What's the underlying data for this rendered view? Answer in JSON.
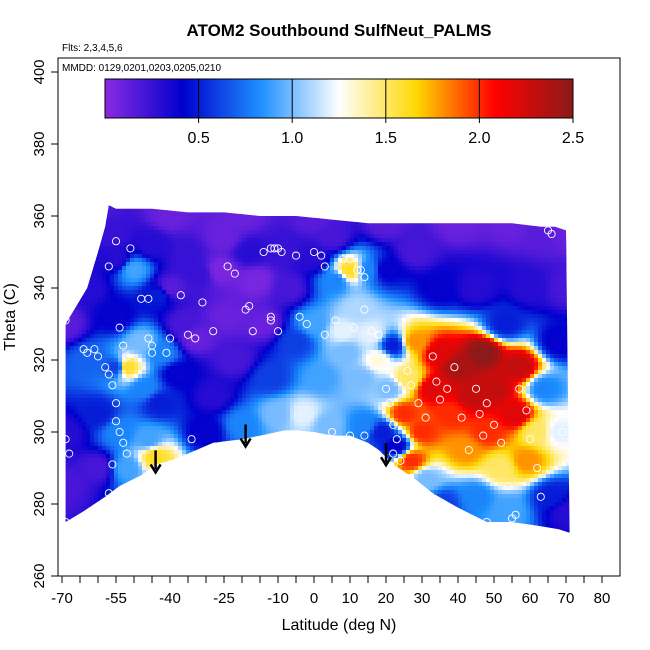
{
  "chart_data": {
    "type": "heatmap",
    "title": "ATOM2 Southbound SulfNeut_PALMS",
    "flights_label": "Flts: 2,3,4,5,6",
    "dates_label": "MMDD: 0129,0201,0203,0205,0210",
    "xlabel": "Latitude (deg N)",
    "ylabel": "Theta (C)",
    "xlim": [
      -70,
      80
    ],
    "ylim": [
      260,
      400
    ],
    "x_ticks": [
      -70,
      -55,
      -40,
      -25,
      -10,
      0,
      10,
      20,
      30,
      40,
      50,
      60,
      70,
      80
    ],
    "x_tick_labels": [
      "-70",
      "-55",
      "-40",
      "-25",
      "-10",
      "0",
      "10",
      "20",
      "30",
      "40",
      "50",
      "60",
      "70",
      "80"
    ],
    "x_minor_ticks": [
      -65,
      -60,
      -50,
      -45,
      -35,
      -30,
      -20,
      -15,
      -5,
      5,
      15,
      25,
      35,
      45,
      55,
      65,
      75
    ],
    "y_ticks": [
      260,
      280,
      300,
      320,
      340,
      360,
      380,
      400
    ],
    "y_tick_labels": [
      "260",
      "280",
      "300",
      "320",
      "340",
      "360",
      "380",
      "400"
    ],
    "colorbar": {
      "range": [
        0,
        2.5
      ],
      "ticks": [
        0.5,
        1.0,
        1.5,
        2.0,
        2.5
      ],
      "tick_labels": [
        "0.5",
        "1.0",
        "1.5",
        "2.0",
        "2.5"
      ],
      "colors": [
        "#8a2be2",
        "#0000cd",
        "#1e90ff",
        "#ffffff",
        "#ffd700",
        "#ff0000",
        "#8b1a1a"
      ]
    },
    "envelope": {
      "top": [
        [
          -69,
          330
        ],
        [
          -66,
          335
        ],
        [
          -63,
          340
        ],
        [
          -60,
          350
        ],
        [
          -58,
          357
        ],
        [
          -57,
          363
        ],
        [
          -55,
          362
        ],
        [
          -45,
          362
        ],
        [
          -35,
          361
        ],
        [
          -25,
          361
        ],
        [
          -15,
          360
        ],
        [
          -5,
          360
        ],
        [
          5,
          359
        ],
        [
          15,
          358
        ],
        [
          25,
          358
        ],
        [
          35,
          358
        ],
        [
          45,
          358
        ],
        [
          55,
          358
        ],
        [
          63,
          357
        ],
        [
          67,
          357
        ],
        [
          70,
          356
        ]
      ],
      "bottom": [
        [
          -69,
          275
        ],
        [
          -64,
          278
        ],
        [
          -58,
          282
        ],
        [
          -54,
          285
        ],
        [
          -48,
          288
        ],
        [
          -44,
          291
        ],
        [
          -40,
          292
        ],
        [
          -35,
          294
        ],
        [
          -28,
          297
        ],
        [
          -20,
          298
        ],
        [
          -15,
          299
        ],
        [
          -8,
          300.5
        ],
        [
          -5,
          300.5
        ],
        [
          0,
          300
        ],
        [
          5,
          299
        ],
        [
          10,
          299
        ],
        [
          15,
          297
        ],
        [
          18,
          295
        ],
        [
          22,
          291
        ],
        [
          28,
          287
        ],
        [
          33,
          283
        ],
        [
          40,
          279
        ],
        [
          48,
          275
        ],
        [
          55,
          275
        ],
        [
          62,
          274
        ],
        [
          68,
          273
        ],
        [
          71,
          272
        ]
      ]
    },
    "nodes": [
      [
        -69,
        330,
        0.15
      ],
      [
        -69,
        300,
        0.3
      ],
      [
        -69,
        285,
        0.2
      ],
      [
        -63,
        340,
        0.3
      ],
      [
        -62,
        320,
        0.7
      ],
      [
        -60,
        305,
        0.5
      ],
      [
        -60,
        290,
        0.2
      ],
      [
        -56,
        355,
        0.25
      ],
      [
        -55,
        348,
        0.3
      ],
      [
        -55,
        332,
        0.4
      ],
      [
        -55,
        318,
        0.6
      ],
      [
        -54,
        300,
        0.8
      ],
      [
        -52,
        318,
        1.6
      ],
      [
        -52,
        290,
        0.9
      ],
      [
        -50,
        345,
        0.9
      ],
      [
        -48,
        325,
        1.0
      ],
      [
        -47,
        312,
        0.8
      ],
      [
        -46,
        298,
        0.9
      ],
      [
        -44,
        293,
        1.6
      ],
      [
        -43,
        308,
        0.5
      ],
      [
        -43,
        338,
        0.5
      ],
      [
        -42,
        322,
        0.8
      ],
      [
        -40,
        340,
        0.15
      ],
      [
        -38,
        316,
        0.4
      ],
      [
        -36,
        330,
        0.2
      ],
      [
        -35,
        349,
        0.25
      ],
      [
        -33,
        326,
        0.1
      ],
      [
        -32,
        344,
        0.25
      ],
      [
        -30,
        300,
        0.4
      ],
      [
        -28,
        310,
        0.3
      ],
      [
        -26,
        345,
        0.05
      ],
      [
        -24,
        332,
        0.1
      ],
      [
        -22,
        320,
        0.2
      ],
      [
        -20,
        302,
        0.8
      ],
      [
        -18,
        350,
        0.3
      ],
      [
        -16,
        342,
        0.05
      ],
      [
        -14,
        330,
        0.1
      ],
      [
        -12,
        315,
        0.6
      ],
      [
        -10,
        305,
        1.0
      ],
      [
        -8,
        350,
        0.25
      ],
      [
        -7,
        340,
        0.2
      ],
      [
        -5,
        325,
        0.6
      ],
      [
        -3,
        305,
        1.2
      ],
      [
        0,
        348,
        0.3
      ],
      [
        0,
        330,
        0.9
      ],
      [
        2,
        315,
        0.9
      ],
      [
        4,
        302,
        1.0
      ],
      [
        6,
        342,
        0.8
      ],
      [
        8,
        328,
        1.2
      ],
      [
        9,
        322,
        1.0
      ],
      [
        10,
        345,
        1.6
      ],
      [
        12,
        334,
        1.1
      ],
      [
        13,
        315,
        1.0
      ],
      [
        14,
        302,
        0.8
      ],
      [
        15,
        345,
        0.8
      ],
      [
        16,
        327,
        1.2
      ],
      [
        18,
        320,
        1.3
      ],
      [
        19,
        300,
        0.5
      ],
      [
        20,
        345,
        0.4
      ],
      [
        21,
        312,
        1.0
      ],
      [
        22,
        324,
        0.5
      ],
      [
        23,
        296,
        0.4
      ],
      [
        25,
        305,
        2.0
      ],
      [
        26,
        315,
        1.5
      ],
      [
        27,
        292,
        2.0
      ],
      [
        28,
        325,
        1.8
      ],
      [
        30,
        300,
        2.0
      ],
      [
        31,
        287,
        1.0
      ],
      [
        33,
        312,
        2.2
      ],
      [
        35,
        322,
        2.2
      ],
      [
        36,
        280,
        0.6
      ],
      [
        38,
        305,
        2.0
      ],
      [
        40,
        318,
        2.4
      ],
      [
        42,
        295,
        1.8
      ],
      [
        44,
        310,
        2.3
      ],
      [
        45,
        282,
        0.8
      ],
      [
        47,
        322,
        2.5
      ],
      [
        48,
        300,
        2.0
      ],
      [
        50,
        312,
        2.3
      ],
      [
        52,
        290,
        1.5
      ],
      [
        53,
        330,
        0.5
      ],
      [
        54,
        278,
        0.9
      ],
      [
        56,
        305,
        2.2
      ],
      [
        57,
        318,
        2.3
      ],
      [
        59,
        292,
        1.8
      ],
      [
        60,
        340,
        0.3
      ],
      [
        62,
        300,
        1.5
      ],
      [
        63,
        355,
        0.15
      ],
      [
        64,
        312,
        0.8
      ],
      [
        66,
        282,
        0.5
      ],
      [
        68,
        300,
        1.2
      ],
      [
        68,
        325,
        0.4
      ],
      [
        70,
        340,
        0.2
      ],
      [
        70,
        356,
        0.1
      ],
      [
        70,
        278,
        0.3
      ],
      [
        -60,
        362,
        0.2
      ],
      [
        -40,
        360,
        0.1
      ],
      [
        -20,
        360,
        0.1
      ],
      [
        0,
        359,
        0.15
      ],
      [
        20,
        358,
        0.15
      ],
      [
        40,
        358,
        0.1
      ],
      [
        55,
        358,
        0.1
      ],
      [
        35,
        340,
        0.4
      ],
      [
        45,
        340,
        0.3
      ],
      [
        -45,
        352,
        0.3
      ],
      [
        -25,
        354,
        0.1
      ],
      [
        5,
        354,
        0.2
      ],
      [
        28,
        350,
        0.2
      ]
    ],
    "sample_points": [
      [
        -69,
        331
      ],
      [
        -68,
        336
      ],
      [
        -69,
        298
      ],
      [
        -68,
        294
      ],
      [
        -69,
        275
      ],
      [
        -64,
        323
      ],
      [
        -63,
        322
      ],
      [
        -61,
        323
      ],
      [
        -60,
        321
      ],
      [
        -58,
        318
      ],
      [
        -57,
        316
      ],
      [
        -56,
        313
      ],
      [
        -55,
        308
      ],
      [
        -55,
        303
      ],
      [
        -54,
        300
      ],
      [
        -53,
        297
      ],
      [
        -52,
        294
      ],
      [
        -56,
        291
      ],
      [
        -57,
        283
      ],
      [
        -55,
        353
      ],
      [
        -57,
        346
      ],
      [
        -54,
        329
      ],
      [
        -53,
        324
      ],
      [
        -52,
        321
      ],
      [
        -51,
        351
      ],
      [
        -48,
        337
      ],
      [
        -46,
        337
      ],
      [
        -46,
        326
      ],
      [
        -45,
        324
      ],
      [
        -45,
        322
      ],
      [
        -41,
        322
      ],
      [
        -40,
        326
      ],
      [
        -37,
        338
      ],
      [
        -35,
        327
      ],
      [
        -33,
        326
      ],
      [
        -31,
        336
      ],
      [
        -28,
        328
      ],
      [
        -24,
        346
      ],
      [
        -22,
        344
      ],
      [
        -19,
        334
      ],
      [
        -18,
        335
      ],
      [
        -17,
        328
      ],
      [
        -14,
        350
      ],
      [
        -12,
        351
      ],
      [
        -11,
        351
      ],
      [
        -10,
        351
      ],
      [
        -9,
        350
      ],
      [
        -12,
        332
      ],
      [
        -12,
        331
      ],
      [
        -10,
        328
      ],
      [
        -5,
        349
      ],
      [
        -4,
        332
      ],
      [
        -2,
        330
      ],
      [
        0,
        350
      ],
      [
        2,
        349
      ],
      [
        3,
        346
      ],
      [
        3,
        327
      ],
      [
        6,
        331
      ],
      [
        8,
        348
      ],
      [
        10,
        348
      ],
      [
        12,
        345
      ],
      [
        13,
        345
      ],
      [
        14,
        343
      ],
      [
        14,
        334
      ],
      [
        11,
        329
      ],
      [
        16,
        328
      ],
      [
        18,
        327
      ],
      [
        19,
        318
      ],
      [
        20,
        312
      ],
      [
        21,
        308
      ],
      [
        22,
        302
      ],
      [
        23,
        298
      ],
      [
        22,
        294
      ],
      [
        24,
        292
      ],
      [
        26,
        317
      ],
      [
        27,
        313
      ],
      [
        29,
        308
      ],
      [
        31,
        304
      ],
      [
        33,
        321
      ],
      [
        34,
        314
      ],
      [
        35,
        309
      ],
      [
        37,
        312
      ],
      [
        39,
        318
      ],
      [
        41,
        304
      ],
      [
        43,
        295
      ],
      [
        45,
        312
      ],
      [
        46,
        305
      ],
      [
        47,
        299
      ],
      [
        48,
        308
      ],
      [
        50,
        302
      ],
      [
        52,
        297
      ],
      [
        54,
        285
      ],
      [
        56,
        277
      ],
      [
        57,
        312
      ],
      [
        59,
        306
      ],
      [
        60,
        298
      ],
      [
        62,
        290
      ],
      [
        63,
        282
      ],
      [
        65,
        356
      ],
      [
        66,
        355
      ],
      [
        69,
        300
      ],
      [
        -34,
        298
      ],
      [
        -40,
        291
      ],
      [
        -16,
        297
      ],
      [
        5,
        300
      ],
      [
        10,
        299
      ],
      [
        14,
        299
      ],
      [
        48,
        275
      ],
      [
        55,
        276
      ]
    ],
    "arrows_x": [
      -44,
      -19,
      20
    ]
  }
}
